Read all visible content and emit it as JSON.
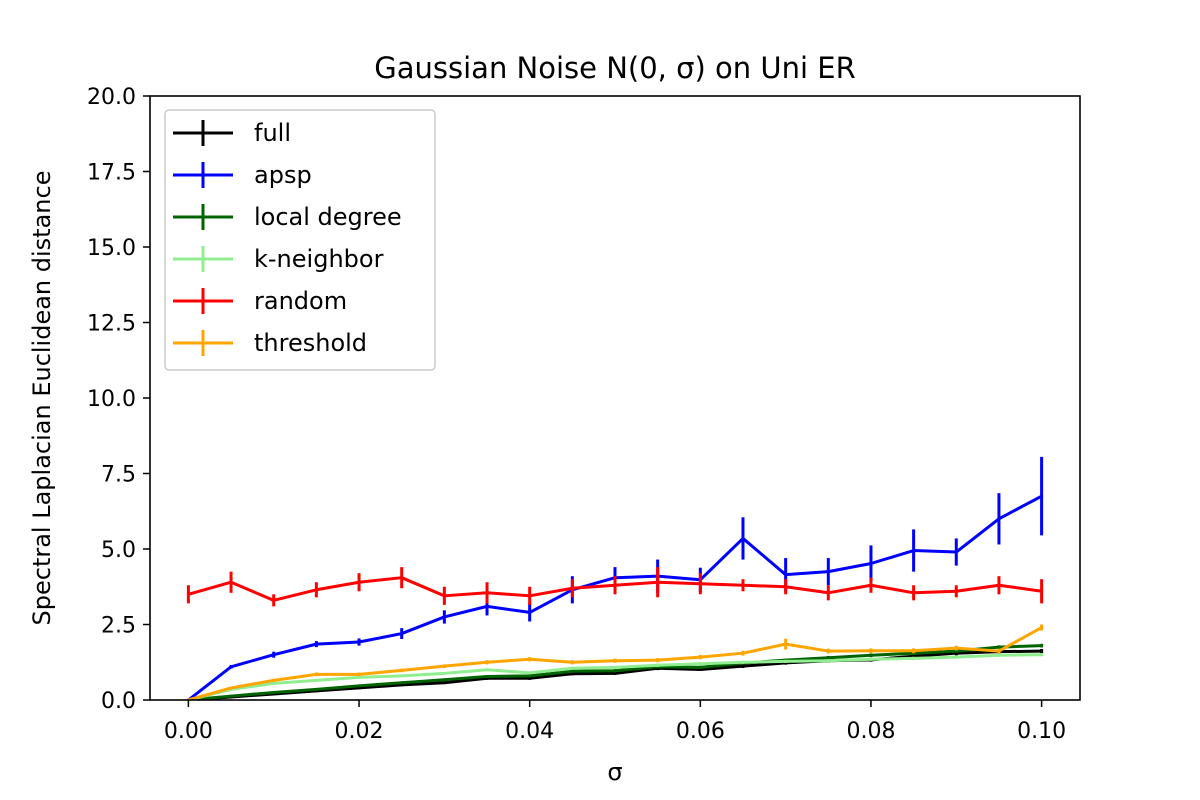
{
  "chart_data": {
    "type": "line",
    "title": "Gaussian Noise N(0, σ) on Uni ER",
    "xlabel": "σ",
    "ylabel": "Spectral Laplacian Euclidean distance",
    "xlim": [
      -0.0045,
      0.1045
    ],
    "ylim": [
      0,
      20
    ],
    "xticks": [
      "0.00",
      "0.02",
      "0.04",
      "0.06",
      "0.08",
      "0.10"
    ],
    "xtick_values": [
      0,
      0.02,
      0.04,
      0.06,
      0.08,
      0.1
    ],
    "yticks": [
      "0.0",
      "2.5",
      "5.0",
      "7.5",
      "10.0",
      "12.5",
      "15.0",
      "17.5",
      "20.0"
    ],
    "ytick_values": [
      0,
      2.5,
      5,
      7.5,
      10,
      12.5,
      15,
      17.5,
      20
    ],
    "grid": false,
    "legend_position": "top-left",
    "x": [
      0,
      0.005,
      0.01,
      0.015,
      0.02,
      0.025,
      0.03,
      0.035,
      0.04,
      0.045,
      0.05,
      0.055,
      0.06,
      0.065,
      0.07,
      0.075,
      0.08,
      0.085,
      0.09,
      0.095,
      0.1
    ],
    "series": [
      {
        "name": "full",
        "color": "#000000",
        "values": [
          0,
          0.1,
          0.2,
          0.3,
          0.4,
          0.5,
          0.57,
          0.72,
          0.72,
          0.87,
          0.88,
          1.05,
          1.01,
          1.12,
          1.23,
          1.3,
          1.33,
          1.45,
          1.55,
          1.6,
          1.62
        ],
        "errors": [
          0,
          0.03,
          0.03,
          0.03,
          0.04,
          0.04,
          0.04,
          0.05,
          0.05,
          0.05,
          0.05,
          0.06,
          0.05,
          0.06,
          0.06,
          0.06,
          0.06,
          0.06,
          0.07,
          0.07,
          0.07
        ]
      },
      {
        "name": "apsp",
        "color": "#0000ff",
        "values": [
          0,
          1.1,
          1.5,
          1.85,
          1.92,
          2.2,
          2.75,
          3.1,
          2.9,
          3.65,
          4.05,
          4.1,
          3.98,
          5.35,
          4.15,
          4.25,
          4.52,
          4.95,
          4.9,
          6.0,
          6.75
        ],
        "errors": [
          0,
          0.06,
          0.1,
          0.1,
          0.12,
          0.18,
          0.22,
          0.3,
          0.3,
          0.45,
          0.35,
          0.55,
          0.4,
          0.7,
          0.55,
          0.45,
          0.6,
          0.7,
          0.45,
          0.85,
          1.3
        ]
      },
      {
        "name": "local degree",
        "color": "#006400",
        "values": [
          0,
          0.13,
          0.25,
          0.35,
          0.47,
          0.57,
          0.67,
          0.78,
          0.8,
          0.95,
          0.97,
          1.1,
          1.08,
          1.22,
          1.32,
          1.4,
          1.48,
          1.55,
          1.62,
          1.75,
          1.8
        ],
        "errors": [
          0,
          0.03,
          0.03,
          0.03,
          0.03,
          0.04,
          0.04,
          0.04,
          0.04,
          0.05,
          0.05,
          0.05,
          0.05,
          0.05,
          0.05,
          0.06,
          0.06,
          0.06,
          0.06,
          0.06,
          0.06
        ]
      },
      {
        "name": "k-neighbor",
        "color": "#90ee90",
        "values": [
          0,
          0.35,
          0.55,
          0.65,
          0.75,
          0.8,
          0.88,
          1.0,
          0.9,
          1.05,
          1.08,
          1.15,
          1.2,
          1.25,
          1.28,
          1.3,
          1.35,
          1.38,
          1.42,
          1.48,
          1.5
        ],
        "errors": [
          0,
          0.03,
          0.03,
          0.03,
          0.03,
          0.04,
          0.04,
          0.04,
          0.04,
          0.04,
          0.04,
          0.05,
          0.05,
          0.05,
          0.05,
          0.05,
          0.05,
          0.05,
          0.05,
          0.05,
          0.05
        ]
      },
      {
        "name": "random",
        "color": "#ff0000",
        "values": [
          3.5,
          3.9,
          3.3,
          3.65,
          3.9,
          4.05,
          3.45,
          3.55,
          3.45,
          3.7,
          3.8,
          3.9,
          3.85,
          3.8,
          3.75,
          3.55,
          3.8,
          3.55,
          3.6,
          3.8,
          3.6
        ],
        "errors": [
          0.3,
          0.35,
          0.2,
          0.25,
          0.3,
          0.35,
          0.3,
          0.35,
          0.3,
          0.3,
          0.3,
          0.5,
          0.35,
          0.2,
          0.25,
          0.25,
          0.25,
          0.25,
          0.2,
          0.3,
          0.4
        ]
      },
      {
        "name": "threshold",
        "color": "#ffa500",
        "values": [
          0,
          0.4,
          0.65,
          0.85,
          0.85,
          0.98,
          1.12,
          1.25,
          1.35,
          1.25,
          1.3,
          1.32,
          1.42,
          1.55,
          1.85,
          1.62,
          1.63,
          1.63,
          1.72,
          1.62,
          2.4
        ],
        "errors": [
          0,
          0.04,
          0.05,
          0.06,
          0.06,
          0.06,
          0.06,
          0.07,
          0.07,
          0.07,
          0.07,
          0.07,
          0.07,
          0.08,
          0.18,
          0.08,
          0.08,
          0.08,
          0.08,
          0.08,
          0.1
        ]
      }
    ]
  }
}
